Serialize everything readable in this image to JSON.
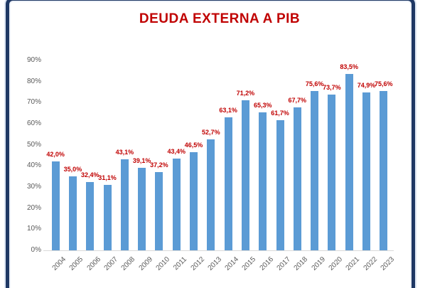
{
  "title": "DEUDA EXTERNA A PIB",
  "colors": {
    "title": "#C00000",
    "bar": "#5B9BD5",
    "data_label": "#C00000",
    "axis_text": "#595959",
    "frame_border": "#1F3864",
    "axis_line": "#D9D9D9"
  },
  "chart_data": {
    "type": "bar",
    "title": "DEUDA EXTERNA A PIB",
    "categories": [
      "2004",
      "2005",
      "2006",
      "2007",
      "2008",
      "2009",
      "2010",
      "2011",
      "2012",
      "2013",
      "2014",
      "2015",
      "2016",
      "2017",
      "2018",
      "2019",
      "2020",
      "2021",
      "2022",
      "2023"
    ],
    "values": [
      42.0,
      35.0,
      32.4,
      31.1,
      43.1,
      39.1,
      37.2,
      43.4,
      46.5,
      52.7,
      63.1,
      71.2,
      65.3,
      61.7,
      67.7,
      75.6,
      73.7,
      83.5,
      74.9,
      75.6
    ],
    "data_labels": [
      "42,0%",
      "35,0%",
      "32,4%",
      "31,1%",
      "43,1%",
      "39,1%",
      "37,2%",
      "43,4%",
      "46,5%",
      "52,7%",
      "63,1%",
      "71,2%",
      "65,3%",
      "61,7%",
      "67,7%",
      "75,6%",
      "73,7%",
      "83,5%",
      "74,9%",
      "75,6%"
    ],
    "ytick_values": [
      0,
      10,
      20,
      30,
      40,
      50,
      60,
      70,
      80,
      90
    ],
    "ytick_labels": [
      "0%",
      "10%",
      "20%",
      "30%",
      "40%",
      "50%",
      "60%",
      "70%",
      "80%",
      "90%"
    ],
    "xlabel": "",
    "ylabel": "",
    "ylim": [
      0,
      90
    ],
    "grid": false,
    "legend": false,
    "xtick_rotation_deg": 45
  }
}
